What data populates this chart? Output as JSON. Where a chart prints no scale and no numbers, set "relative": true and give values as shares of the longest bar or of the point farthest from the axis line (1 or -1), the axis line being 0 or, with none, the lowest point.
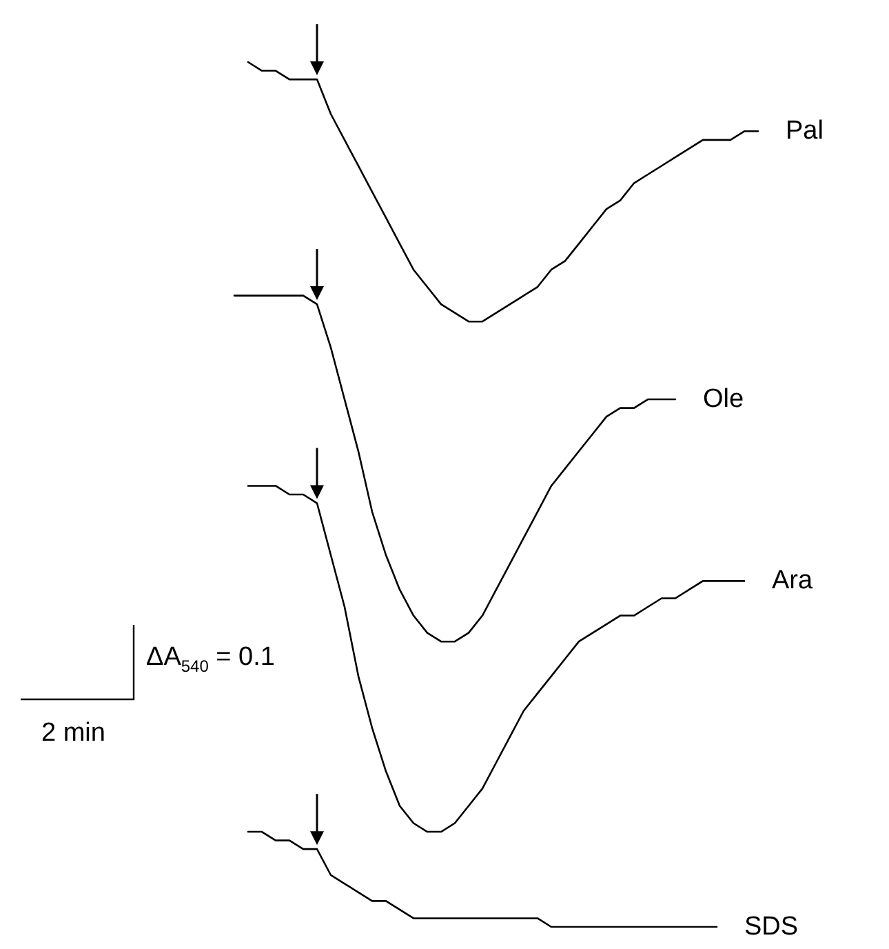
{
  "chart_data": {
    "type": "line",
    "relative": true,
    "categories": [
      null,
      null,
      null,
      null,
      null,
      null,
      null,
      null,
      null,
      null,
      null,
      null,
      null,
      null,
      null,
      null,
      null,
      null,
      null,
      null,
      null,
      null,
      null,
      null,
      null,
      null,
      null,
      null,
      null,
      null,
      null,
      null,
      null,
      null,
      null,
      null,
      null,
      null,
      null,
      null
    ],
    "series": [
      {
        "name": "Pal",
        "color": "#000000",
        "values": [
          null,
          1.0,
          0.99,
          0.99,
          0.98,
          0.98,
          0.98,
          0.94,
          0.91,
          0.88,
          0.85,
          0.82,
          0.79,
          0.76,
          0.74,
          0.72,
          0.71,
          0.7,
          0.7,
          0.71,
          0.72,
          0.73,
          0.74,
          0.76,
          0.77,
          0.79,
          0.81,
          0.83,
          0.84,
          0.86,
          0.87,
          0.88,
          0.89,
          0.9,
          0.91,
          0.91,
          0.91,
          0.92,
          0.92,
          null
        ]
      },
      {
        "name": "Ole",
        "color": "#000000",
        "values": [
          0.73,
          0.73,
          0.73,
          0.73,
          0.73,
          0.73,
          0.72,
          0.67,
          0.61,
          0.55,
          0.48,
          0.43,
          0.39,
          0.36,
          0.34,
          0.33,
          0.33,
          0.34,
          0.36,
          0.39,
          0.42,
          0.45,
          0.48,
          0.51,
          0.53,
          0.55,
          0.57,
          0.59,
          0.6,
          0.6,
          0.61,
          0.61,
          0.61,
          null,
          null,
          null,
          null,
          null,
          null,
          null
        ]
      },
      {
        "name": "Ara",
        "color": "#000000",
        "values": [
          null,
          0.51,
          0.51,
          0.51,
          0.5,
          0.5,
          0.49,
          0.43,
          0.37,
          0.29,
          0.23,
          0.18,
          0.14,
          0.12,
          0.11,
          0.11,
          0.12,
          0.14,
          0.16,
          0.19,
          0.22,
          0.25,
          0.27,
          0.29,
          0.31,
          0.33,
          0.34,
          0.35,
          0.36,
          0.36,
          0.37,
          0.38,
          0.38,
          0.39,
          0.4,
          0.4,
          0.4,
          0.4,
          null,
          null
        ]
      },
      {
        "name": "SDS",
        "color": "#000000",
        "values": [
          null,
          0.11,
          0.11,
          0.1,
          0.1,
          0.09,
          0.09,
          0.06,
          0.05,
          0.04,
          0.03,
          0.03,
          0.02,
          0.01,
          0.01,
          0.01,
          0.01,
          0.01,
          0.01,
          0.01,
          0.01,
          0.01,
          0.01,
          0,
          0,
          0,
          0,
          0,
          0,
          0,
          0,
          0,
          0,
          0,
          0,
          0,
          null,
          null,
          null,
          null
        ]
      }
    ],
    "annotations": [
      "ΔA$_{540}$ = 0.1",
      "2 min"
    ]
  }
}
